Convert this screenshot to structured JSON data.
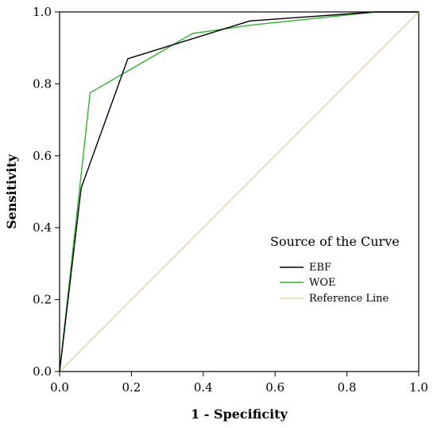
{
  "chart_data": {
    "type": "line",
    "xlabel": "1 - Specificity",
    "ylabel": "Sensitivity",
    "xlim": [
      0,
      1
    ],
    "ylim": [
      0,
      1
    ],
    "x_ticks": [
      "0.0",
      "0.2",
      "0.4",
      "0.6",
      "0.8",
      "1.0"
    ],
    "y_ticks": [
      "0.0",
      "0.2",
      "0.4",
      "0.6",
      "0.8",
      "1.0"
    ],
    "grid": false,
    "legend": {
      "title": "Source of the Curve",
      "placement": "bottom-right"
    },
    "series": [
      {
        "name": "EBF",
        "color": "#000000",
        "points": [
          [
            0,
            0
          ],
          [
            0.06,
            0.51
          ],
          [
            0.19,
            0.87
          ],
          [
            0.53,
            0.975
          ],
          [
            0.88,
            1.0
          ],
          [
            1.0,
            1.0
          ]
        ]
      },
      {
        "name": "WOE",
        "color": "#2db52d",
        "points": [
          [
            0,
            0
          ],
          [
            0.085,
            0.775
          ],
          [
            0.37,
            0.94
          ],
          [
            0.53,
            0.963
          ],
          [
            0.88,
            1.0
          ],
          [
            1.0,
            1.0
          ]
        ]
      },
      {
        "name": "Reference Line",
        "color": "#dcd5a2",
        "points": [
          [
            0,
            0
          ],
          [
            1.0,
            1.0
          ]
        ]
      }
    ]
  }
}
